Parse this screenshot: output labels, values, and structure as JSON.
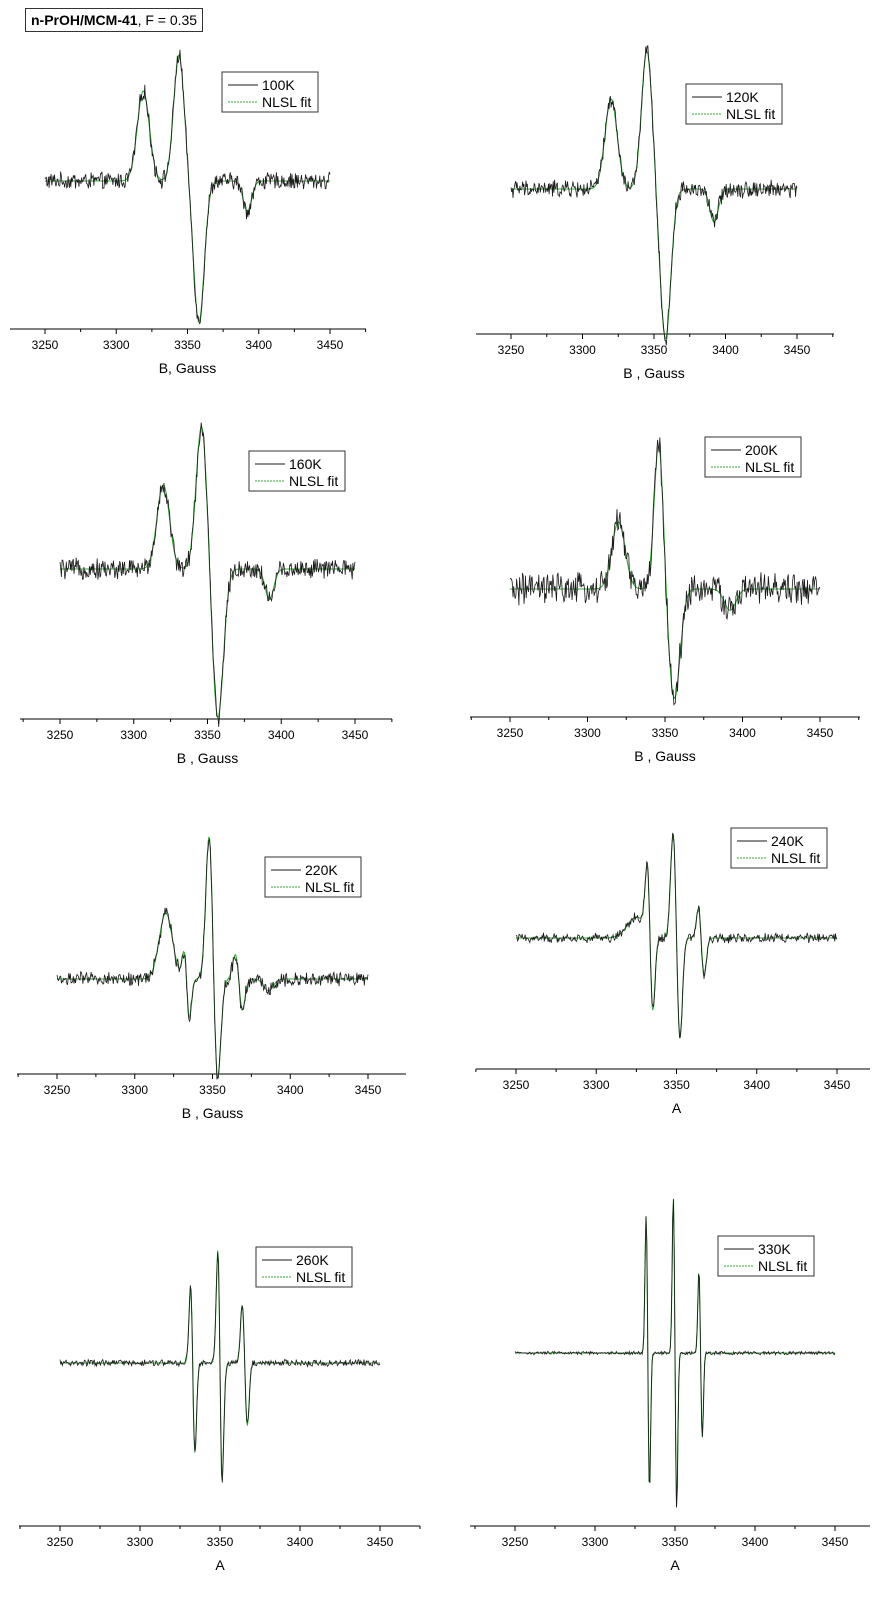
{
  "figure_title": {
    "bold": "n-PrOH/MCM-41",
    "rest": ", F = 0.35"
  },
  "colors": {
    "experimental": "#1a1a1a",
    "fit": "#33aa33",
    "axis": "#000000"
  },
  "chart_data": [
    {
      "type": "line",
      "temperature_label": "100K",
      "fit_label": "NLSL fit",
      "xlabel": "B, Gauss",
      "xlim": [
        3250,
        3450
      ],
      "xticks": [
        3250,
        3300,
        3350,
        3400,
        3450
      ],
      "series": [
        {
          "name": "100K",
          "style": "experimental"
        },
        {
          "name": "NLSL fit",
          "style": "fit"
        }
      ],
      "lineshape": {
        "features": [
          [
            3319,
            0.0,
            6,
            0.3
          ],
          [
            3344,
            0.42,
            5,
            0.0
          ],
          [
            3358,
            -0.47,
            5,
            0.0
          ],
          [
            3392,
            -0.1,
            4,
            0.0
          ]
        ],
        "noise": 0.025
      }
    },
    {
      "type": "line",
      "temperature_label": "120K",
      "fit_label": "NLSL fit",
      "xlabel": "B , Gauss",
      "xlim": [
        3250,
        3450
      ],
      "xticks": [
        3250,
        3300,
        3350,
        3400,
        3450
      ],
      "series": [
        {
          "name": "120K",
          "style": "experimental"
        },
        {
          "name": "NLSL fit",
          "style": "fit"
        }
      ],
      "lineshape": {
        "features": [
          [
            3320,
            0.0,
            6,
            0.3
          ],
          [
            3345,
            0.46,
            5,
            0.0
          ],
          [
            3358,
            -0.5,
            5,
            0.0
          ],
          [
            3392,
            -0.11,
            4,
            0.0
          ]
        ],
        "noise": 0.025
      }
    },
    {
      "type": "line",
      "temperature_label": "160K",
      "fit_label": "NLSL fit",
      "xlabel": "B , Gauss",
      "xlim": [
        3250,
        3450
      ],
      "xticks": [
        3250,
        3300,
        3350,
        3400,
        3450
      ],
      "series": [
        {
          "name": "160K",
          "style": "experimental"
        },
        {
          "name": "NLSL fit",
          "style": "fit"
        }
      ],
      "lineshape": {
        "features": [
          [
            3320,
            0.0,
            6,
            0.28
          ],
          [
            3346,
            0.48,
            5,
            0.0
          ],
          [
            3357,
            -0.5,
            5,
            0.0
          ],
          [
            3392,
            -0.1,
            4,
            0.0
          ]
        ],
        "noise": 0.03
      }
    },
    {
      "type": "line",
      "temperature_label": "200K",
      "fit_label": "NLSL fit",
      "xlabel": "B , Gauss",
      "xlim": [
        3250,
        3450
      ],
      "xticks": [
        3250,
        3300,
        3350,
        3400,
        3450
      ],
      "series": [
        {
          "name": "200K",
          "style": "experimental"
        },
        {
          "name": "NLSL fit",
          "style": "fit"
        }
      ],
      "lineshape": {
        "features": [
          [
            3320,
            0.0,
            6,
            0.22
          ],
          [
            3346,
            0.48,
            4,
            0.0
          ],
          [
            3356,
            -0.36,
            5,
            0.0
          ],
          [
            3392,
            -0.07,
            5,
            0.0
          ]
        ],
        "noise": 0.045
      }
    },
    {
      "type": "line",
      "temperature_label": "220K",
      "fit_label": "NLSL fit",
      "xlabel": "B , Gauss",
      "xlim": [
        3250,
        3450
      ],
      "xticks": [
        3250,
        3300,
        3350,
        3400,
        3450
      ],
      "series": [
        {
          "name": "220K",
          "style": "experimental"
        },
        {
          "name": "NLSL fit",
          "style": "fit"
        }
      ],
      "lineshape": {
        "features": [
          [
            3320,
            0.0,
            6,
            0.22
          ],
          [
            3332,
            0.1,
            2,
            0.0
          ],
          [
            3335,
            -0.14,
            2,
            0.0
          ],
          [
            3348,
            0.5,
            3,
            0.0
          ],
          [
            3353,
            -0.36,
            3,
            0.0
          ],
          [
            3365,
            0.09,
            2.5,
            0.0
          ],
          [
            3369,
            -0.11,
            2.5,
            0.0
          ],
          [
            3386,
            -0.04,
            4,
            0.0
          ]
        ],
        "noise": 0.02
      }
    },
    {
      "type": "line",
      "temperature_label": "240K",
      "fit_label": "NLSL fit",
      "xlabel": "A",
      "xlim": [
        3250,
        3450
      ],
      "xticks": [
        3250,
        3300,
        3350,
        3400,
        3450
      ],
      "series": [
        {
          "name": "240K",
          "style": "experimental"
        },
        {
          "name": "NLSL fit",
          "style": "fit"
        }
      ],
      "lineshape": {
        "features": [
          [
            3325,
            0.0,
            8,
            0.1
          ],
          [
            3332,
            0.34,
            2,
            0.0
          ],
          [
            3335,
            -0.4,
            2,
            0.0
          ],
          [
            3348,
            0.52,
            2.2,
            0.0
          ],
          [
            3352,
            -0.5,
            2.2,
            0.0
          ],
          [
            3364,
            0.16,
            2,
            0.0
          ],
          [
            3367,
            -0.2,
            2,
            0.0
          ]
        ],
        "noise": 0.02
      }
    },
    {
      "type": "line",
      "temperature_label": "260K",
      "fit_label": "NLSL fit",
      "xlabel": "A",
      "xlim": [
        3250,
        3450
      ],
      "xticks": [
        3250,
        3300,
        3350,
        3400,
        3450
      ],
      "series": [
        {
          "name": "260K",
          "style": "experimental"
        },
        {
          "name": "NLSL fit",
          "style": "fit"
        }
      ],
      "lineshape": {
        "features": [
          [
            3332,
            0.4,
            1.6,
            0.0
          ],
          [
            3334,
            -0.45,
            1.6,
            0.0
          ],
          [
            3349,
            0.58,
            1.6,
            0.0
          ],
          [
            3351,
            -0.6,
            1.6,
            0.0
          ],
          [
            3364,
            0.25,
            1.6,
            0.0
          ],
          [
            3367,
            -0.27,
            1.6,
            0.0
          ]
        ],
        "noise": 0.012
      }
    },
    {
      "type": "line",
      "temperature_label": "330K",
      "fit_label": "NLSL fit",
      "xlabel": "A",
      "xlim": [
        3250,
        3450
      ],
      "xticks": [
        3250,
        3300,
        3350,
        3400,
        3450
      ],
      "series": [
        {
          "name": "330K",
          "style": "experimental"
        },
        {
          "name": "NLSL fit",
          "style": "fit"
        }
      ],
      "lineshape": {
        "features": [
          [
            3332,
            0.58,
            1.0,
            0.0
          ],
          [
            3334,
            -0.58,
            1.0,
            0.0
          ],
          [
            3349,
            0.66,
            1.0,
            0.0
          ],
          [
            3351,
            -0.66,
            1.0,
            0.0
          ],
          [
            3365,
            0.35,
            1.0,
            0.0
          ],
          [
            3367,
            -0.36,
            1.0,
            0.0
          ]
        ],
        "noise": 0.006
      }
    }
  ]
}
